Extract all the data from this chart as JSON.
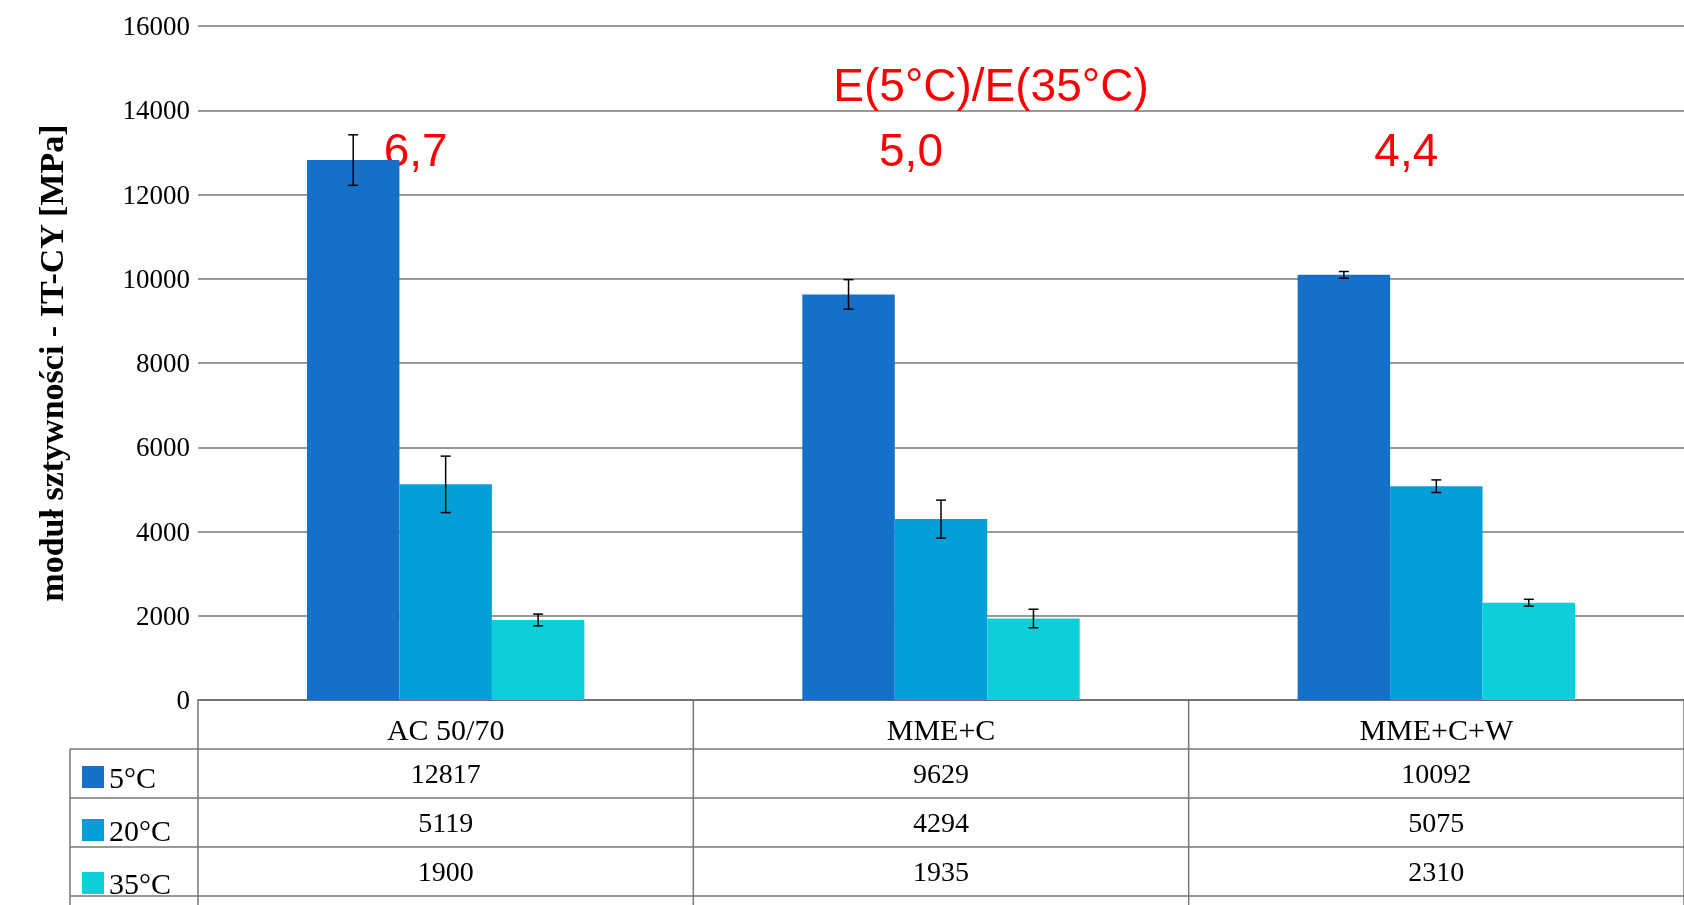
{
  "chart_data": {
    "type": "bar",
    "ylabel": "moduł sztywności - IT-CY [MPa]",
    "categories": [
      "AC 50/70",
      "MME+C",
      "MME+C+W"
    ],
    "series": [
      {
        "name": "5°C",
        "color": "#1470c8",
        "values": [
          12817,
          9629,
          10092
        ],
        "errors": [
          600,
          350,
          80
        ]
      },
      {
        "name": "20°C",
        "color": "#049fd9",
        "values": [
          5119,
          4294,
          5075
        ],
        "errors": [
          670,
          450,
          150
        ]
      },
      {
        "name": "35°C",
        "color": "#0ccfd9",
        "values": [
          1900,
          1935,
          2310
        ],
        "errors": [
          140,
          220,
          80
        ]
      }
    ],
    "ylim": [
      0,
      16000
    ],
    "yticks": [
      0,
      2000,
      4000,
      6000,
      8000,
      10000,
      12000,
      14000,
      16000
    ],
    "grid": "y",
    "legend": "bottom left",
    "data_labels": true,
    "annotations": [
      "E(5°C)/E(35°C)",
      "6,7",
      "5,0",
      "4,4"
    ]
  }
}
